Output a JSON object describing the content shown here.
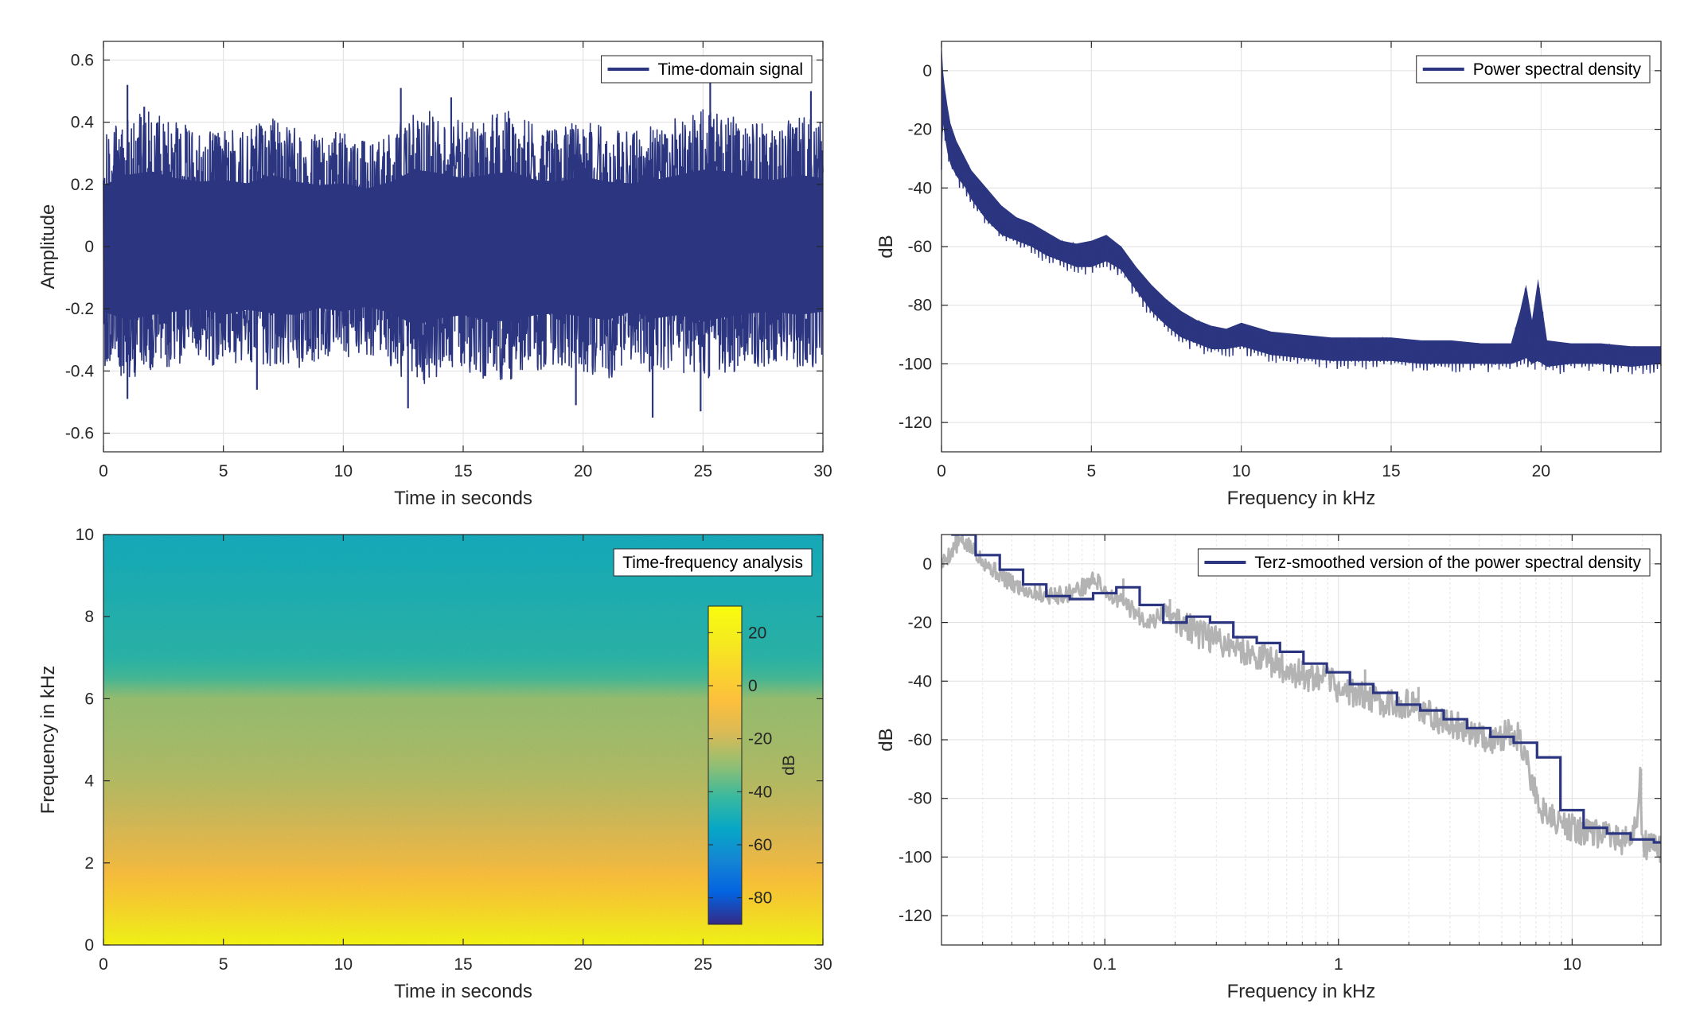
{
  "colors": {
    "series": "#2b3580",
    "raw_psd": "#b3b3b3",
    "grid": "#dfdfdf",
    "axis": "#262626",
    "background": "#ffffff",
    "colormap": "parula"
  },
  "chart_data": [
    {
      "id": "time",
      "type": "line",
      "title": "",
      "xlabel": "Time in seconds",
      "ylabel": "Amplitude",
      "xlim": [
        0,
        30
      ],
      "ylim": [
        -0.66,
        0.66
      ],
      "xticks": [
        0,
        5,
        10,
        15,
        20,
        25,
        30
      ],
      "xtick_labels": [
        "0",
        "5",
        "10",
        "15",
        "20",
        "25",
        "30"
      ],
      "yticks": [
        -0.6,
        -0.4,
        -0.2,
        0,
        0.2,
        0.4,
        0.6
      ],
      "ytick_labels": [
        "-0.6",
        "-0.4",
        "-0.2",
        "0",
        "0.2",
        "0.4",
        "0.6"
      ],
      "grid": true,
      "legend_position": "top-right",
      "series": [
        {
          "name": "Time-domain signal",
          "color": "#2b3580",
          "envelope": {
            "x": [
              0,
              1,
              2,
              3,
              4,
              5,
              6,
              7,
              8,
              9,
              10,
              11,
              12,
              13,
              14,
              15,
              16,
              17,
              18,
              19,
              20,
              21,
              22,
              23,
              24,
              25,
              26,
              27,
              28,
              29,
              30
            ],
            "upper": [
              0.36,
              0.42,
              0.44,
              0.4,
              0.38,
              0.39,
              0.37,
              0.42,
              0.38,
              0.36,
              0.37,
              0.34,
              0.38,
              0.45,
              0.43,
              0.4,
              0.42,
              0.44,
              0.39,
              0.38,
              0.41,
              0.38,
              0.37,
              0.39,
              0.42,
              0.45,
              0.44,
              0.4,
              0.39,
              0.42,
              0.4
            ],
            "lower": [
              -0.38,
              -0.43,
              -0.4,
              -0.38,
              -0.36,
              -0.4,
              -0.37,
              -0.39,
              -0.4,
              -0.36,
              -0.38,
              -0.35,
              -0.39,
              -0.46,
              -0.42,
              -0.4,
              -0.43,
              -0.44,
              -0.4,
              -0.39,
              -0.41,
              -0.43,
              -0.38,
              -0.42,
              -0.4,
              -0.44,
              -0.41,
              -0.39,
              -0.38,
              -0.4,
              -0.38
            ]
          },
          "peaks": [
            {
              "x": 1.0,
              "y": 0.52
            },
            {
              "x": 1.7,
              "y": 0.45
            },
            {
              "x": 12.4,
              "y": 0.51
            },
            {
              "x": 14.5,
              "y": 0.48
            },
            {
              "x": 25.3,
              "y": 0.53
            },
            {
              "x": 29.5,
              "y": 0.5
            },
            {
              "x": 1.0,
              "y": -0.49
            },
            {
              "x": 6.4,
              "y": -0.46
            },
            {
              "x": 12.7,
              "y": -0.52
            },
            {
              "x": 19.7,
              "y": -0.51
            },
            {
              "x": 22.9,
              "y": -0.55
            },
            {
              "x": 24.9,
              "y": -0.53
            }
          ]
        }
      ]
    },
    {
      "id": "psd",
      "type": "line",
      "title": "",
      "xlabel": "Frequency in kHz",
      "ylabel": "dB",
      "xlim": [
        0,
        24
      ],
      "ylim": [
        -130,
        10
      ],
      "xticks": [
        0,
        5,
        10,
        15,
        20
      ],
      "xtick_labels": [
        "0",
        "5",
        "10",
        "15",
        "20"
      ],
      "yticks": [
        -120,
        -100,
        -80,
        -60,
        -40,
        -20,
        0
      ],
      "ytick_labels": [
        "-120",
        "-100",
        "-80",
        "-60",
        "-40",
        "-20",
        "0"
      ],
      "grid": true,
      "legend_position": "top-right",
      "series": [
        {
          "name": "Power spectral density",
          "color": "#2b3580",
          "x": [
            0,
            0.05,
            0.1,
            0.2,
            0.3,
            0.5,
            0.8,
            1.0,
            1.5,
            2.0,
            2.5,
            3.0,
            3.5,
            4.0,
            4.5,
            5.0,
            5.5,
            6.0,
            6.5,
            7.0,
            7.5,
            8.0,
            8.5,
            9.0,
            9.5,
            10.0,
            11.0,
            12.0,
            13.0,
            14.0,
            15.0,
            16.0,
            17.0,
            18.0,
            19.0,
            19.3,
            19.5,
            19.7,
            19.9,
            20.2,
            21.0,
            22.0,
            23.0,
            24.0
          ],
          "upper": [
            10,
            0,
            -5,
            -12,
            -18,
            -24,
            -30,
            -34,
            -40,
            -46,
            -50,
            -52,
            -55,
            -58,
            -59,
            -58,
            -56,
            -60,
            -67,
            -73,
            -78,
            -82,
            -85,
            -87,
            -88,
            -86,
            -89,
            -90,
            -91,
            -91,
            -91,
            -92,
            -92,
            -93,
            -93,
            -82,
            -73,
            -85,
            -71,
            -92,
            -93,
            -93,
            -94,
            -94
          ],
          "lower": [
            -33,
            -18,
            -22,
            -28,
            -32,
            -36,
            -40,
            -44,
            -51,
            -56,
            -58,
            -60,
            -63,
            -65,
            -67,
            -67,
            -65,
            -68,
            -75,
            -82,
            -87,
            -91,
            -93,
            -95,
            -95,
            -94,
            -97,
            -98,
            -99,
            -99,
            -99,
            -100,
            -100,
            -100,
            -100,
            -99,
            -98,
            -100,
            -99,
            -101,
            -100,
            -100,
            -101,
            -100
          ]
        }
      ]
    },
    {
      "id": "spectrogram",
      "type": "heatmap",
      "title": "",
      "xlabel": "Time in seconds",
      "ylabel": "Frequency in kHz",
      "xlim": [
        0,
        30
      ],
      "ylim": [
        0,
        10
      ],
      "xticks": [
        0,
        5,
        10,
        15,
        20,
        25,
        30
      ],
      "xtick_labels": [
        "0",
        "5",
        "10",
        "15",
        "20",
        "25",
        "30"
      ],
      "yticks": [
        0,
        2,
        4,
        6,
        8,
        10
      ],
      "ytick_labels": [
        "0",
        "2",
        "4",
        "6",
        "8",
        "10"
      ],
      "legend_position": "top-right",
      "legend_label": "Time-frequency analysis",
      "colorbar": {
        "label": "dB",
        "clim": [
          -90,
          30
        ],
        "ticks": [
          20,
          0,
          -20,
          -40,
          -60,
          -80
        ],
        "tick_labels": [
          "20",
          "0",
          "-20",
          "-40",
          "-60",
          "-80"
        ],
        "colormap": "parula"
      },
      "level_profile": {
        "frequency_khz": [
          0,
          0.2,
          0.5,
          1,
          2,
          3,
          4,
          5,
          6,
          6.5,
          7,
          8,
          9,
          10
        ],
        "level_db": [
          25,
          20,
          14,
          5,
          -10,
          -19,
          -24,
          -27,
          -29,
          -40,
          -45,
          -47,
          -49,
          -51
        ]
      }
    },
    {
      "id": "terz",
      "type": "line",
      "title": "",
      "xlabel": "Frequency in kHz",
      "ylabel": "dB",
      "xscale": "log",
      "xlim": [
        0.02,
        24
      ],
      "ylim": [
        -130,
        10
      ],
      "xticks": [
        0.1,
        1,
        10
      ],
      "xtick_labels": [
        "0.1",
        "1",
        "10"
      ],
      "yticks": [
        -120,
        -100,
        -80,
        -60,
        -40,
        -20,
        0
      ],
      "ytick_labels": [
        "-120",
        "-100",
        "-80",
        "-60",
        "-40",
        "-20",
        "0"
      ],
      "grid": true,
      "legend_position": "top-right",
      "series": [
        {
          "name": "Terz-smoothed version of the power spectral density",
          "color": "#2b3580",
          "band_edges": [
            0.022,
            0.028,
            0.0355,
            0.0447,
            0.0562,
            0.0708,
            0.0891,
            0.112,
            0.141,
            0.178,
            0.224,
            0.282,
            0.355,
            0.447,
            0.562,
            0.708,
            0.891,
            1.12,
            1.41,
            1.78,
            2.24,
            2.82,
            3.55,
            4.47,
            5.62,
            7.08,
            8.91,
            11.2,
            14.1,
            17.8,
            22.4,
            24
          ],
          "levels": [
            10,
            3,
            -2,
            -7,
            -11,
            -12,
            -10,
            -8,
            -14,
            -20,
            -18,
            -20,
            -25,
            -27,
            -30,
            -34,
            -37,
            -41,
            -44,
            -48,
            -50,
            -53,
            -56,
            -59,
            -61,
            -66,
            -84,
            -90,
            -92,
            -94,
            -95
          ]
        },
        {
          "name": "",
          "color": "#b3b3b3",
          "x": [
            0.02,
            0.024,
            0.028,
            0.032,
            0.036,
            0.04,
            0.05,
            0.06,
            0.07,
            0.08,
            0.09,
            0.1,
            0.11,
            0.12,
            0.14,
            0.16,
            0.18,
            0.2,
            0.25,
            0.3,
            0.35,
            0.4,
            0.5,
            0.6,
            0.7,
            0.8,
            0.9,
            1.0,
            1.2,
            1.5,
            2.0,
            2.5,
            3.0,
            3.5,
            4.0,
            4.5,
            5.0,
            5.5,
            6.0,
            6.5,
            7.0,
            7.5,
            8.0,
            9.0,
            10.0,
            12.0,
            14.0,
            16.0,
            18.0,
            19.0,
            19.5,
            20.0,
            21.0,
            24.0
          ],
          "y": [
            0,
            8,
            4,
            -1,
            -4,
            -7,
            -10,
            -11,
            -10,
            -8,
            -5,
            -9,
            -12,
            -13,
            -18,
            -20,
            -16,
            -19,
            -24,
            -26,
            -28,
            -30,
            -33,
            -36,
            -38,
            -40,
            -39,
            -43,
            -44,
            -47,
            -48,
            -52,
            -55,
            -56,
            -58,
            -60,
            -59,
            -57,
            -60,
            -70,
            -79,
            -84,
            -86,
            -89,
            -90,
            -92,
            -93,
            -94,
            -95,
            -88,
            -72,
            -95,
            -96,
            -97
          ],
          "spikes": [
            {
              "x": 0.023,
              "y": 10
            },
            {
              "x": 0.12,
              "y": -5
            },
            {
              "x": 0.19,
              "y": -12
            },
            {
              "x": 0.31,
              "y": -22
            },
            {
              "x": 0.7,
              "y": -33
            },
            {
              "x": 1.3,
              "y": -36
            },
            {
              "x": 2.2,
              "y": -42
            },
            {
              "x": 5.5,
              "y": -55
            },
            {
              "x": 19.7,
              "y": -70
            }
          ]
        }
      ]
    }
  ]
}
